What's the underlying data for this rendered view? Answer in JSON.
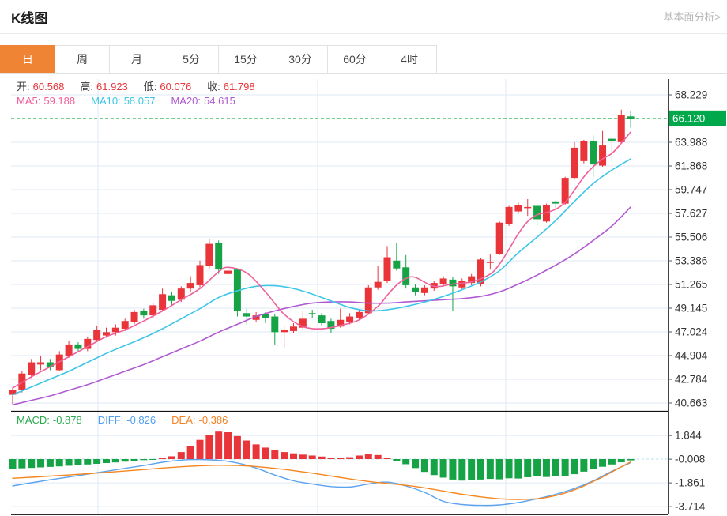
{
  "page": {
    "title": "K线图",
    "link_label": "基本面分析>"
  },
  "tabs": [
    {
      "label": "日",
      "active": true
    },
    {
      "label": "周",
      "active": false
    },
    {
      "label": "月",
      "active": false
    },
    {
      "label": "5分",
      "active": false
    },
    {
      "label": "15分",
      "active": false
    },
    {
      "label": "30分",
      "active": false
    },
    {
      "label": "60分",
      "active": false
    },
    {
      "label": "4时",
      "active": false
    }
  ],
  "legend": {
    "ohlc": [
      {
        "label": "开:",
        "value": "60.568"
      },
      {
        "label": "高:",
        "value": "61.923"
      },
      {
        "label": "低:",
        "value": "60.076"
      },
      {
        "label": "收:",
        "value": "61.798"
      }
    ],
    "ma": [
      {
        "label": "MA5:",
        "value": "59.188",
        "color": "#f0609a"
      },
      {
        "label": "MA10:",
        "value": "58.057",
        "color": "#3ec6e8"
      },
      {
        "label": "MA20:",
        "value": "54.615",
        "color": "#b05ad2"
      }
    ],
    "macd": [
      {
        "label": "MACD:",
        "value": "-0.878",
        "color": "#2aa94f"
      },
      {
        "label": "DIFF:",
        "value": "-0.826",
        "color": "#4f9ef0"
      },
      {
        "label": "DEA:",
        "value": "-0.386",
        "color": "#f5821f"
      }
    ]
  },
  "colors": {
    "up": "#e9353a",
    "down": "#16a346",
    "ma5": "#f0609a",
    "ma10": "#3ec6e8",
    "ma20": "#b05ad2",
    "diff": "#5ba2f0",
    "dea": "#f5861f",
    "grid": "#dfe9f5",
    "axis_text": "#333333",
    "axis_line": "#444444",
    "black_line": "#111111",
    "current_bg": "#00a84c",
    "current_line": "#21b24c",
    "current_text": "#ffffff",
    "zero_line": "#b5e0f0"
  },
  "chart_data": {
    "type": "candlestick+macd",
    "title": "K线图 日线",
    "price_axis": {
      "ticks": [
        68.229,
        63.988,
        61.868,
        59.747,
        57.627,
        55.506,
        53.386,
        51.265,
        49.145,
        47.024,
        44.904,
        42.784,
        40.663
      ],
      "current": 66.12
    },
    "candles": [
      [
        41.4,
        42.0,
        40.6,
        41.8
      ],
      [
        41.8,
        43.5,
        41.6,
        43.3
      ],
      [
        43.2,
        44.6,
        42.9,
        44.3
      ],
      [
        44.1,
        44.9,
        43.6,
        44.3
      ],
      [
        44.3,
        44.6,
        43.6,
        43.9
      ],
      [
        43.6,
        45.3,
        43.5,
        45.0
      ],
      [
        44.9,
        46.2,
        44.7,
        45.9
      ],
      [
        45.9,
        46.1,
        45.2,
        45.5
      ],
      [
        45.5,
        46.6,
        45.3,
        46.4
      ],
      [
        46.3,
        47.6,
        46.1,
        47.2
      ],
      [
        46.7,
        47.4,
        46.5,
        47.0
      ],
      [
        47.0,
        47.7,
        46.7,
        47.4
      ],
      [
        47.3,
        48.2,
        47.1,
        48.0
      ],
      [
        47.9,
        49.0,
        47.7,
        48.8
      ],
      [
        48.9,
        49.1,
        48.2,
        48.5
      ],
      [
        48.5,
        49.6,
        48.3,
        49.4
      ],
      [
        49.0,
        50.9,
        48.9,
        50.4
      ],
      [
        50.3,
        50.6,
        49.4,
        49.8
      ],
      [
        49.9,
        51.1,
        49.7,
        50.9
      ],
      [
        50.9,
        52.0,
        50.6,
        51.4
      ],
      [
        51.2,
        53.4,
        51.0,
        53.0
      ],
      [
        52.9,
        55.3,
        52.7,
        54.9
      ],
      [
        55.0,
        55.2,
        52.2,
        52.6
      ],
      [
        52.2,
        53.0,
        52.0,
        52.5
      ],
      [
        52.6,
        52.7,
        48.4,
        48.9
      ],
      [
        48.7,
        49.1,
        47.7,
        48.4
      ],
      [
        48.1,
        48.8,
        47.9,
        48.5
      ],
      [
        48.6,
        48.8,
        47.8,
        48.3
      ],
      [
        48.4,
        48.6,
        45.9,
        47.0
      ],
      [
        47.0,
        47.5,
        45.6,
        47.2
      ],
      [
        47.1,
        47.8,
        46.9,
        47.5
      ],
      [
        47.4,
        48.9,
        47.2,
        48.2
      ],
      [
        48.7,
        49.0,
        48.3,
        48.6
      ],
      [
        48.5,
        48.7,
        47.6,
        47.8
      ],
      [
        48.0,
        48.2,
        46.9,
        47.3
      ],
      [
        47.5,
        49.1,
        47.4,
        48.1
      ],
      [
        47.9,
        48.7,
        47.7,
        48.4
      ],
      [
        48.3,
        49.0,
        48.1,
        48.8
      ],
      [
        48.7,
        51.2,
        48.6,
        51.0
      ],
      [
        51.0,
        52.9,
        50.8,
        51.5
      ],
      [
        51.6,
        54.7,
        51.4,
        53.7
      ],
      [
        53.4,
        55.0,
        52.5,
        52.7
      ],
      [
        52.8,
        53.9,
        50.9,
        51.2
      ],
      [
        51.0,
        51.3,
        50.3,
        50.6
      ],
      [
        50.5,
        51.2,
        50.3,
        51.0
      ],
      [
        50.9,
        51.6,
        50.7,
        51.4
      ],
      [
        51.3,
        52.0,
        51.1,
        51.8
      ],
      [
        51.7,
        51.9,
        48.9,
        51.1
      ],
      [
        51.0,
        51.8,
        50.8,
        51.6
      ],
      [
        51.4,
        52.2,
        51.2,
        52.0
      ],
      [
        51.3,
        53.6,
        51.1,
        53.5
      ],
      [
        53.2,
        54.0,
        52.6,
        53.3
      ],
      [
        54.0,
        56.9,
        53.9,
        56.8
      ],
      [
        56.7,
        58.3,
        56.5,
        58.2
      ],
      [
        57.8,
        58.6,
        57.6,
        58.4
      ],
      [
        58.1,
        58.9,
        57.4,
        58.2
      ],
      [
        58.3,
        58.5,
        56.5,
        57.1
      ],
      [
        56.9,
        58.5,
        56.8,
        58.4
      ],
      [
        58.7,
        58.8,
        58.0,
        58.5
      ],
      [
        58.5,
        60.9,
        58.4,
        60.8
      ],
      [
        60.8,
        64.0,
        60.7,
        63.5
      ],
      [
        62.3,
        64.2,
        62.1,
        64.1
      ],
      [
        64.1,
        64.6,
        60.9,
        62.0
      ],
      [
        61.9,
        65.0,
        61.8,
        63.7
      ],
      [
        64.3,
        64.4,
        62.2,
        64.1
      ],
      [
        64.0,
        66.9,
        63.9,
        66.4
      ],
      [
        66.3,
        66.8,
        65.3,
        66.1
      ]
    ],
    "ma5_points": [
      [
        0,
        42.0
      ],
      [
        2,
        43.0
      ],
      [
        4,
        43.9
      ],
      [
        6,
        44.8
      ],
      [
        8,
        45.7
      ],
      [
        10,
        46.6
      ],
      [
        12,
        47.2
      ],
      [
        14,
        48.0
      ],
      [
        16,
        48.9
      ],
      [
        18,
        49.9
      ],
      [
        20,
        50.9
      ],
      [
        22,
        52.4
      ],
      [
        23,
        52.8
      ],
      [
        25,
        52.3
      ],
      [
        27,
        50.6
      ],
      [
        29,
        48.6
      ],
      [
        31,
        47.5
      ],
      [
        33,
        47.3
      ],
      [
        35,
        47.6
      ],
      [
        37,
        48.1
      ],
      [
        39,
        49.3
      ],
      [
        40,
        50.3
      ],
      [
        41,
        51.2
      ],
      [
        42,
        51.8
      ],
      [
        43,
        51.9
      ],
      [
        45,
        51.1
      ],
      [
        47,
        51.3
      ],
      [
        49,
        51.5
      ],
      [
        51,
        52.2
      ],
      [
        52,
        53.1
      ],
      [
        53,
        54.4
      ],
      [
        54,
        55.8
      ],
      [
        55,
        56.9
      ],
      [
        56,
        57.5
      ],
      [
        57,
        57.7
      ],
      [
        58,
        58.0
      ],
      [
        59,
        58.6
      ],
      [
        60,
        59.7
      ],
      [
        61,
        60.9
      ],
      [
        62,
        61.8
      ],
      [
        63,
        62.5
      ],
      [
        64,
        63.0
      ],
      [
        65,
        63.9
      ],
      [
        66,
        64.9
      ]
    ],
    "ma10_points": [
      [
        0,
        41.4
      ],
      [
        2,
        42.1
      ],
      [
        4,
        42.8
      ],
      [
        6,
        43.5
      ],
      [
        8,
        44.3
      ],
      [
        10,
        45.1
      ],
      [
        12,
        45.8
      ],
      [
        14,
        46.5
      ],
      [
        16,
        47.3
      ],
      [
        18,
        48.2
      ],
      [
        20,
        49.1
      ],
      [
        22,
        50.1
      ],
      [
        24,
        50.7
      ],
      [
        26,
        51.1
      ],
      [
        28,
        51.15
      ],
      [
        30,
        50.9
      ],
      [
        32,
        50.4
      ],
      [
        34,
        49.8
      ],
      [
        36,
        49.2
      ],
      [
        38,
        48.9
      ],
      [
        40,
        49.0
      ],
      [
        42,
        49.3
      ],
      [
        44,
        49.7
      ],
      [
        46,
        50.2
      ],
      [
        48,
        50.8
      ],
      [
        50,
        51.5
      ],
      [
        52,
        52.5
      ],
      [
        54,
        54.1
      ],
      [
        56,
        55.5
      ],
      [
        58,
        57.0
      ],
      [
        60,
        58.7
      ],
      [
        62,
        60.3
      ],
      [
        64,
        61.5
      ],
      [
        66,
        62.5
      ]
    ],
    "ma20_points": [
      [
        0,
        40.5
      ],
      [
        2,
        40.9
      ],
      [
        4,
        41.3
      ],
      [
        6,
        41.8
      ],
      [
        8,
        42.3
      ],
      [
        10,
        42.9
      ],
      [
        12,
        43.5
      ],
      [
        14,
        44.1
      ],
      [
        16,
        44.8
      ],
      [
        18,
        45.5
      ],
      [
        20,
        46.2
      ],
      [
        22,
        47.0
      ],
      [
        24,
        47.7
      ],
      [
        26,
        48.4
      ],
      [
        28,
        48.9
      ],
      [
        30,
        49.3
      ],
      [
        32,
        49.6
      ],
      [
        34,
        49.7
      ],
      [
        36,
        49.7
      ],
      [
        38,
        49.6
      ],
      [
        40,
        49.6
      ],
      [
        42,
        49.7
      ],
      [
        44,
        49.8
      ],
      [
        46,
        49.9
      ],
      [
        48,
        50.0
      ],
      [
        50,
        50.2
      ],
      [
        52,
        50.6
      ],
      [
        54,
        51.3
      ],
      [
        56,
        52.1
      ],
      [
        58,
        53.0
      ],
      [
        60,
        54.0
      ],
      [
        62,
        55.2
      ],
      [
        64,
        56.5
      ],
      [
        66,
        58.2
      ]
    ],
    "macd": {
      "axis_ticks": [
        1.844,
        -0.008,
        -1.861,
        -3.714
      ],
      "bars": [
        -0.75,
        -0.72,
        -0.69,
        -0.65,
        -0.61,
        -0.57,
        -0.52,
        -0.47,
        -0.42,
        -0.37,
        -0.31,
        -0.26,
        -0.2,
        -0.14,
        -0.08,
        -0.03,
        0.06,
        0.22,
        0.55,
        1.0,
        1.5,
        1.9,
        2.15,
        2.1,
        1.8,
        1.45,
        1.15,
        0.9,
        0.7,
        0.55,
        0.45,
        0.35,
        0.28,
        0.2,
        0.12,
        0.1,
        0.15,
        0.28,
        0.38,
        0.32,
        0.1,
        -0.15,
        -0.4,
        -0.7,
        -1.0,
        -1.25,
        -1.45,
        -1.6,
        -1.68,
        -1.65,
        -1.6,
        -1.55,
        -1.58,
        -1.5,
        -1.52,
        -1.42,
        -1.35,
        -1.4,
        -1.3,
        -1.33,
        -1.18,
        -0.98,
        -0.8,
        -0.6,
        -0.42,
        -0.25,
        -0.1
      ],
      "diff_points": [
        [
          0,
          -2.1
        ],
        [
          2,
          -1.85
        ],
        [
          4,
          -1.62
        ],
        [
          6,
          -1.4
        ],
        [
          8,
          -1.18
        ],
        [
          10,
          -0.95
        ],
        [
          12,
          -0.72
        ],
        [
          14,
          -0.5
        ],
        [
          16,
          -0.25
        ],
        [
          18,
          -0.08
        ],
        [
          20,
          -0.04
        ],
        [
          22,
          -0.1
        ],
        [
          24,
          -0.3
        ],
        [
          26,
          -0.7
        ],
        [
          28,
          -1.25
        ],
        [
          30,
          -1.7
        ],
        [
          32,
          -1.95
        ],
        [
          34,
          -2.15
        ],
        [
          36,
          -2.18
        ],
        [
          38,
          -1.95
        ],
        [
          40,
          -1.8
        ],
        [
          42,
          -2.1
        ],
        [
          44,
          -2.6
        ],
        [
          46,
          -3.3
        ],
        [
          48,
          -3.55
        ],
        [
          50,
          -3.62
        ],
        [
          52,
          -3.58
        ],
        [
          54,
          -3.4
        ],
        [
          56,
          -3.1
        ],
        [
          58,
          -2.75
        ],
        [
          60,
          -2.3
        ],
        [
          62,
          -1.7
        ],
        [
          64,
          -0.95
        ],
        [
          66,
          -0.28
        ]
      ],
      "dea_points": [
        [
          0,
          -1.5
        ],
        [
          2,
          -1.42
        ],
        [
          4,
          -1.33
        ],
        [
          6,
          -1.24
        ],
        [
          8,
          -1.14
        ],
        [
          10,
          -1.04
        ],
        [
          12,
          -0.93
        ],
        [
          14,
          -0.82
        ],
        [
          16,
          -0.7
        ],
        [
          18,
          -0.6
        ],
        [
          20,
          -0.52
        ],
        [
          22,
          -0.48
        ],
        [
          24,
          -0.5
        ],
        [
          26,
          -0.58
        ],
        [
          28,
          -0.72
        ],
        [
          30,
          -0.9
        ],
        [
          32,
          -1.1
        ],
        [
          34,
          -1.32
        ],
        [
          36,
          -1.55
        ],
        [
          38,
          -1.75
        ],
        [
          40,
          -1.9
        ],
        [
          42,
          -2.05
        ],
        [
          44,
          -2.25
        ],
        [
          46,
          -2.5
        ],
        [
          48,
          -2.75
        ],
        [
          50,
          -2.95
        ],
        [
          52,
          -3.1
        ],
        [
          54,
          -3.15
        ],
        [
          56,
          -3.1
        ],
        [
          57,
          -3.0
        ],
        [
          58,
          -2.85
        ],
        [
          59,
          -2.65
        ],
        [
          60,
          -2.4
        ],
        [
          61,
          -2.1
        ],
        [
          62,
          -1.75
        ],
        [
          63,
          -1.4
        ],
        [
          64,
          -1.0
        ],
        [
          65,
          -0.6
        ],
        [
          66,
          -0.22
        ]
      ]
    }
  }
}
